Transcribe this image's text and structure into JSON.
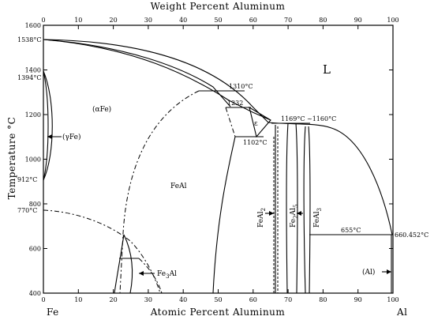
{
  "diagram": {
    "top_axis_title": "Weight Percent Aluminum",
    "bottom_axis_title": "Atomic Percent Aluminum",
    "y_axis_title": "Temperature °C",
    "left_element": "Fe",
    "right_element": "Al",
    "bottom_ticks": [
      "0",
      "10",
      "20",
      "30",
      "40",
      "50",
      "60",
      "70",
      "80",
      "90",
      "100"
    ],
    "top_ticks": [
      "0",
      "10",
      "20",
      "30",
      "40",
      "50",
      "60",
      "70",
      "80",
      "90",
      "100"
    ],
    "y_ticks": [
      "1600",
      "1400",
      "1200",
      "1000",
      "800",
      "600",
      "400"
    ],
    "temperature_labels": {
      "t1538": "1538°C",
      "t1394": "1394°C",
      "t912": "912°C",
      "t770": "770°C",
      "t1310": "1310°C",
      "t1232": "1232",
      "t1102": "1102°C",
      "t1169": "1169°C",
      "t1160": "~1160°C",
      "t655": "655°C",
      "t660": "660.452°C"
    },
    "phase_labels": {
      "liquid": "L",
      "alpha_fe": "(αFe)",
      "gamma_fe": "(γFe)",
      "feal": "FeAl",
      "epsilon": "ε",
      "feal2": "FeAl",
      "feal2_sub": "2",
      "fe2al5": "Fe",
      "fe2al5_sub1": "2",
      "fe2al5_mid": "Al",
      "fe2al5_sub2": "5",
      "feal3": "FeAl",
      "feal3_sub": "3",
      "fe3al": "Fe",
      "fe3al_sub": "3",
      "fe3al_end": "Al",
      "al": "(Al)"
    }
  },
  "chart_data": {
    "type": "phase diagram",
    "x_axis": {
      "label": "Atomic Percent Aluminum",
      "range": [
        0,
        100
      ]
    },
    "x2_axis": {
      "label": "Weight Percent Aluminum",
      "range": [
        0,
        100
      ]
    },
    "y_axis": {
      "label": "Temperature °C",
      "range": [
        400,
        1600
      ]
    },
    "grid": false,
    "invariant_temperatures_c": [
      1538,
      1394,
      912,
      770,
      1310,
      1232,
      1169,
      1160,
      1102,
      655,
      660.452
    ]
  }
}
